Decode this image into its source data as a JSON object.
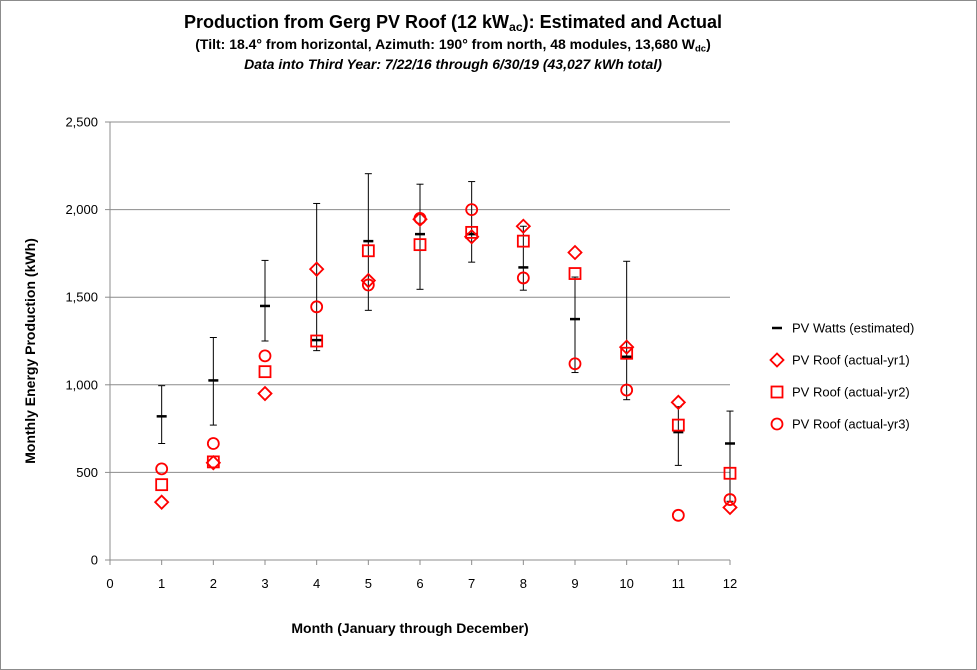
{
  "chart_data": {
    "type": "scatter",
    "title": {
      "main_prefix": "Production from Gerg PV Roof (12 kW",
      "main_sub": "ac",
      "main_suffix": "):  Estimated and Actual",
      "line2_prefix": "(Tilt:  18.4° from horizontal, Azimuth:  190° from north, 48 modules, 13,680 W",
      "line2_sub": "dc",
      "line2_suffix": ")",
      "line3": "Data into Third Year:  7/22/16 through 6/30/19 (43,027 kWh total)"
    },
    "xlabel": "Month (January through December)",
    "ylabel": "Monthly Energy Production (kWh)",
    "xlim": [
      0,
      12
    ],
    "ylim": [
      0,
      2500
    ],
    "x_ticks": [
      "0",
      "1",
      "2",
      "3",
      "4",
      "5",
      "6",
      "7",
      "8",
      "9",
      "10",
      "11",
      "12"
    ],
    "y_ticks": [
      "0",
      "500",
      "1,000",
      "1,500",
      "2,000",
      "2,500"
    ],
    "grid": "horizontal",
    "legend_position": "right",
    "colors": {
      "estimated": "#000000",
      "actual": "#ff0000",
      "grid": "#8c8c8c"
    },
    "series": [
      {
        "name": "PV Watts (estimated)",
        "marker": "dash",
        "x": [
          1,
          2,
          3,
          4,
          5,
          6,
          7,
          8,
          9,
          10,
          11,
          12
        ],
        "y": [
          820,
          1025,
          1450,
          1255,
          1820,
          1860,
          1860,
          1670,
          1375,
          1160,
          730,
          665
        ],
        "error_low": [
          665,
          770,
          1250,
          1195,
          1425,
          1545,
          1700,
          1540,
          1070,
          915,
          540,
          335
        ],
        "error_high": [
          995,
          1270,
          1710,
          2035,
          2205,
          2145,
          2160,
          1905,
          1615,
          1705,
          875,
          850
        ]
      },
      {
        "name": "PV Roof (actual-yr1)",
        "marker": "diamond",
        "x": [
          1,
          2,
          3,
          4,
          5,
          6,
          7,
          8,
          9,
          10,
          11,
          12
        ],
        "y": [
          330,
          555,
          950,
          1660,
          1595,
          1945,
          1845,
          1905,
          1755,
          1215,
          900,
          300
        ]
      },
      {
        "name": "PV Roof (actual-yr2)",
        "marker": "square",
        "x": [
          1,
          2,
          3,
          4,
          5,
          6,
          7,
          8,
          9,
          10,
          11,
          12
        ],
        "y": [
          430,
          560,
          1075,
          1250,
          1765,
          1800,
          1870,
          1820,
          1635,
          1180,
          770,
          495
        ]
      },
      {
        "name": "PV Roof (actual-yr3)",
        "marker": "circle",
        "x": [
          1,
          2,
          3,
          4,
          5,
          6,
          7,
          8,
          9,
          10,
          11,
          12
        ],
        "y": [
          520,
          665,
          1165,
          1445,
          1570,
          1950,
          2000,
          1610,
          1120,
          970,
          255,
          345
        ]
      }
    ]
  }
}
